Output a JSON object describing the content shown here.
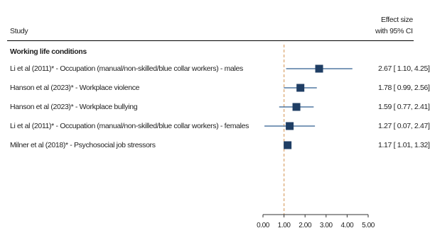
{
  "header": {
    "study": "Study",
    "effect_line1": "Effect size",
    "effect_line2": "with 95% CI"
  },
  "group_title": "Working life conditions",
  "colors": {
    "box": "#1f3e64",
    "ci_line": "#2f5d8f",
    "ref_line": "#d9a46b",
    "axis": "#333333"
  },
  "chart_data": {
    "type": "forest",
    "title": "",
    "xlabel": "",
    "xlim": [
      0,
      5
    ],
    "ticks": [
      0,
      1,
      2,
      3,
      4,
      5
    ],
    "tick_labels": [
      "0.00",
      "1.00",
      "2.00",
      "3.00",
      "4.00",
      "5.00"
    ],
    "reference_line": 1,
    "studies": [
      {
        "label": "Li et al (2011)* - Occupation (manual/non-skilled/blue collar workers) - males",
        "es": 2.67,
        "lo": 1.1,
        "hi": 4.25,
        "ci_text": "2.67 [ 1.10,  4.25]"
      },
      {
        "label": "Hanson et al (2023)* - Workplace violence",
        "es": 1.78,
        "lo": 0.99,
        "hi": 2.56,
        "ci_text": "1.78 [ 0.99,  2.56]"
      },
      {
        "label": "Hanson et al (2023)* - Workplace bullying",
        "es": 1.59,
        "lo": 0.77,
        "hi": 2.41,
        "ci_text": "1.59 [ 0.77,  2.41]"
      },
      {
        "label": "Li et al (2011)* - Occupation (manual/non-skilled/blue collar workers) - females",
        "es": 1.27,
        "lo": 0.07,
        "hi": 2.47,
        "ci_text": "1.27 [ 0.07,  2.47]"
      },
      {
        "label": "Milner et al (2018)* - Psychosocial job stressors",
        "es": 1.17,
        "lo": 1.01,
        "hi": 1.32,
        "ci_text": "1.17 [ 1.01,  1.32]"
      }
    ]
  }
}
